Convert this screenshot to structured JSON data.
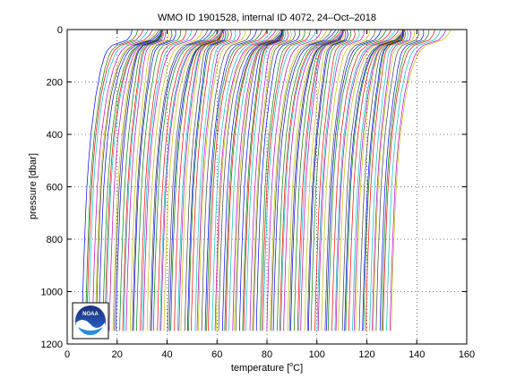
{
  "chart_data": {
    "type": "line",
    "title": "WMO ID 1901528, internal ID 4072, 24–Oct–2018",
    "xlabel": "temperature [",
    "xlabel_unit": "C]",
    "xlabel_degree": "o",
    "ylabel": "pressure [dbar]",
    "xlim": [
      0,
      160
    ],
    "ylim": [
      1200,
      0
    ],
    "y_reversed": true,
    "grid": true,
    "grid_style": "dotted",
    "xticks": [
      0,
      20,
      40,
      60,
      80,
      100,
      120,
      140,
      160
    ],
    "yticks": [
      0,
      200,
      400,
      600,
      800,
      1000,
      1200
    ],
    "series_description": "waterfall of offset temperature profiles",
    "profile_count": 125,
    "profile_offset_step": 1.0,
    "profile_first_offset": 0,
    "profile_colors": [
      "#0000ff",
      "#008000",
      "#ff0000",
      "#00bfbf",
      "#bf00bf",
      "#bfbf00",
      "#404040"
    ],
    "profile_template": {
      "pressure": [
        0,
        20,
        40,
        60,
        80,
        100,
        150,
        200,
        250,
        300,
        400,
        500,
        600,
        700,
        800,
        900,
        1000,
        1100,
        1150
      ],
      "temperature": [
        26.0,
        25.5,
        24.0,
        18.0,
        16.0,
        15.0,
        13.5,
        12.5,
        11.5,
        10.8,
        9.5,
        8.6,
        7.9,
        7.4,
        7.0,
        6.6,
        6.3,
        6.0,
        5.9
      ]
    },
    "logo": {
      "name": "noaa-logo",
      "text": "NOAA"
    }
  }
}
